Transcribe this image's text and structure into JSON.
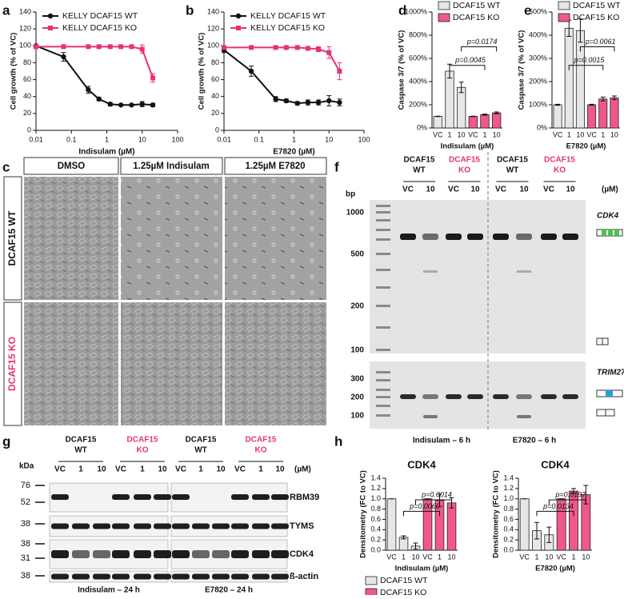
{
  "panel_labels": [
    "a",
    "b",
    "c",
    "d",
    "e",
    "f",
    "g",
    "h"
  ],
  "chart_data": [
    {
      "type": "line",
      "xlabel": "Indisulam (µM)",
      "ylabel": "Cell growth (% of VC)",
      "log_x": true,
      "x": [
        0.01,
        0.06,
        0.3,
        0.6,
        1.25,
        2.5,
        5,
        10,
        20
      ],
      "xlim": [
        0.01,
        100
      ],
      "xticks": [
        0.01,
        0.1,
        1,
        10,
        100
      ],
      "ylim": [
        0,
        140
      ],
      "yticks": [
        0,
        20,
        40,
        60,
        80,
        100,
        120,
        140
      ],
      "legend": "upper-left",
      "series": [
        {
          "name": "KELLY DCAF15 WT",
          "color": "#111111",
          "marker": "circle",
          "values": [
            100,
            87,
            48,
            37,
            31,
            30,
            30,
            31,
            30
          ],
          "errors": [
            1,
            5,
            4,
            2,
            2,
            1,
            1,
            3,
            2
          ]
        },
        {
          "name": "KELLY DCAF15 KO",
          "color": "#e8307a",
          "marker": "square",
          "values": [
            99,
            99,
            99,
            99,
            99,
            99,
            99,
            96,
            62
          ],
          "errors": [
            1,
            1,
            1,
            1,
            1,
            1,
            2,
            5,
            5
          ]
        }
      ]
    },
    {
      "type": "line",
      "xlabel": "E7820 (µM)",
      "ylabel": "Cell growth (% of VC)",
      "log_x": true,
      "x": [
        0.01,
        0.06,
        0.3,
        0.6,
        1.25,
        2.5,
        5,
        10,
        20
      ],
      "xlim": [
        0.01,
        100
      ],
      "xticks": [
        0.01,
        0.1,
        1,
        10,
        100
      ],
      "ylim": [
        0,
        140
      ],
      "yticks": [
        0,
        20,
        40,
        60,
        80,
        100,
        120,
        140
      ],
      "legend": "upper-left",
      "series": [
        {
          "name": "KELLY DCAF15 WT",
          "color": "#111111",
          "marker": "circle",
          "values": [
            95,
            70,
            37,
            35,
            32,
            33,
            33,
            35,
            33
          ],
          "errors": [
            3,
            6,
            3,
            2,
            2,
            3,
            3,
            6,
            4
          ]
        },
        {
          "name": "KELLY DCAF15 KO",
          "color": "#e8307a",
          "marker": "square",
          "values": [
            98,
            98,
            98,
            98,
            98,
            97,
            96,
            92,
            70
          ],
          "errors": [
            1,
            1,
            1,
            1,
            1,
            2,
            3,
            7,
            10
          ]
        }
      ]
    },
    {
      "type": "bar",
      "xlabel": "Indisulam (µM)",
      "ylabel": "Caspase 3/7 (% of VC)",
      "categories": [
        "VC",
        "1",
        "10",
        "VC",
        "1",
        "10"
      ],
      "ylim": [
        0,
        1000
      ],
      "yticks": [
        {
          "value": 0,
          "label": "0%"
        },
        {
          "value": 200,
          "label": "200%"
        },
        {
          "value": 400,
          "label": "400%"
        },
        {
          "value": 600,
          "label": "600%"
        },
        {
          "value": 800,
          "label": "800%"
        },
        {
          "value": 1000,
          "label": "1000%"
        }
      ],
      "legend": "top",
      "series": [
        {
          "name": "DCAF15 WT",
          "color": "#e6e6e6",
          "values": [
            100,
            490,
            350,
            null,
            null,
            null
          ],
          "errors": [
            2,
            60,
            45,
            null,
            null,
            null
          ]
        },
        {
          "name": "DCAF15 KO",
          "color": "#f0588c",
          "values": [
            null,
            null,
            null,
            100,
            115,
            130
          ],
          "errors": [
            null,
            null,
            null,
            2,
            5,
            8
          ]
        }
      ],
      "annotations": [
        "p=0.0045",
        "p=0.0174"
      ]
    },
    {
      "type": "bar",
      "xlabel": "E7820 (µM)",
      "ylabel": "Caspase 3/7 (% of VC)",
      "categories": [
        "VC",
        "1",
        "10",
        "VC",
        "1",
        "10"
      ],
      "ylim": [
        0,
        500
      ],
      "yticks": [
        {
          "value": 0,
          "label": "0%"
        },
        {
          "value": 100,
          "label": "100%"
        },
        {
          "value": 200,
          "label": "200%"
        },
        {
          "value": 300,
          "label": "300%"
        },
        {
          "value": 400,
          "label": "400%"
        },
        {
          "value": 500,
          "label": "500%"
        }
      ],
      "legend": "top",
      "series": [
        {
          "name": "DCAF15 WT",
          "color": "#e6e6e6",
          "values": [
            100,
            430,
            420,
            null,
            null,
            null
          ],
          "errors": [
            2,
            35,
            50,
            null,
            null,
            null
          ]
        },
        {
          "name": "DCAF15 KO",
          "color": "#f0588c",
          "values": [
            null,
            null,
            null,
            100,
            125,
            130
          ],
          "errors": [
            null,
            null,
            null,
            2,
            8,
            8
          ]
        }
      ],
      "annotations": [
        "p=0.0015",
        "p=0.0061"
      ]
    },
    {
      "type": "bar",
      "title": "CDK4",
      "xlabel": "Indisulam (µM)",
      "ylabel": "Densitometry (FC to VC)",
      "categories": [
        "VC",
        "1",
        "10",
        "VC",
        "1",
        "10"
      ],
      "ylim": [
        0,
        1.4
      ],
      "yticks": [
        {
          "value": 0,
          "label": "0.0"
        },
        {
          "value": 0.2,
          "label": "0.2"
        },
        {
          "value": 0.4,
          "label": "0.4"
        },
        {
          "value": 0.6,
          "label": "0.6"
        },
        {
          "value": 0.8,
          "label": "0.8"
        },
        {
          "value": 1,
          "label": "1.0"
        },
        {
          "value": 1.2,
          "label": "1.2"
        },
        {
          "value": 1.4,
          "label": "1.4"
        }
      ],
      "legend": "bottom",
      "series": [
        {
          "name": "DCAF15 WT",
          "color": "#e6e6e6",
          "values": [
            1,
            0.25,
            0.08,
            null,
            null,
            null
          ],
          "errors": [
            0,
            0.03,
            0.06,
            null,
            null,
            null
          ]
        },
        {
          "name": "DCAF15 KO",
          "color": "#f0588c",
          "values": [
            null,
            null,
            null,
            1,
            0.97,
            0.92
          ],
          "errors": [
            null,
            null,
            null,
            0,
            0.12,
            0.1
          ]
        }
      ],
      "annotations": [
        "p=0.0060",
        "p=0.0014"
      ]
    },
    {
      "type": "bar",
      "title": "CDK4",
      "xlabel": "E7820 (µM)",
      "ylabel": "Densitometry (FC to VC)",
      "categories": [
        "VC",
        "1",
        "10",
        "VC",
        "1",
        "10"
      ],
      "ylim": [
        0,
        1.4
      ],
      "yticks": [
        {
          "value": 0,
          "label": "0.0"
        },
        {
          "value": 0.2,
          "label": "0.2"
        },
        {
          "value": 0.4,
          "label": "0.4"
        },
        {
          "value": 0.6,
          "label": "0.6"
        },
        {
          "value": 0.8,
          "label": "0.8"
        },
        {
          "value": 1,
          "label": "1.0"
        },
        {
          "value": 1.2,
          "label": "1.2"
        },
        {
          "value": 1.4,
          "label": "1.4"
        }
      ],
      "series": [
        {
          "color": "#e6e6e6",
          "values": [
            1,
            0.38,
            0.3,
            null,
            null,
            null
          ],
          "errors": [
            0,
            0.16,
            0.15,
            null,
            null,
            null
          ]
        },
        {
          "color": "#f0588c",
          "values": [
            null,
            null,
            null,
            1,
            1.15,
            1.08
          ],
          "errors": [
            null,
            null,
            null,
            0,
            0.05,
            0.18
          ]
        }
      ],
      "annotations": [
        "p=0.0134",
        "p=0.0197"
      ]
    }
  ],
  "panel_c": {
    "columns": [
      "DMSO",
      "1.25µM Indisulam",
      "1.25µM E7820"
    ],
    "rows": [
      "DCAF15 WT",
      "DCAF15 KO"
    ]
  },
  "panel_f": {
    "unit": "bp",
    "ladder_top": [
      "1000",
      "500",
      "200",
      "100"
    ],
    "ladder_bottom": [
      "300",
      "200",
      "100"
    ],
    "groups": [
      [
        "DCAF15",
        "WT"
      ],
      [
        "DCAF15",
        "KO"
      ],
      [
        "DCAF15",
        "WT"
      ],
      [
        "DCAF15",
        "KO"
      ]
    ],
    "lanes": [
      "VC",
      "10",
      "VC",
      "10",
      "VC",
      "10",
      "VC",
      "10"
    ],
    "dose_unit": "(µM)",
    "genes": [
      "CDK4",
      "TRIM27"
    ],
    "treatments": [
      "Indisulam – 6 h",
      "E7820 – 6 h"
    ]
  },
  "panel_g": {
    "unit": "kDa",
    "markers": [
      "76",
      "52",
      "38",
      "38",
      "31",
      "38"
    ],
    "groups": [
      [
        "DCAF15",
        "WT"
      ],
      [
        "DCAF15",
        "KO"
      ],
      [
        "DCAF15",
        "WT"
      ],
      [
        "DCAF15",
        "KO"
      ]
    ],
    "lanes": [
      "VC",
      "1",
      "10",
      "VC",
      "1",
      "10",
      "VC",
      "1",
      "10",
      "VC",
      "1",
      "10"
    ],
    "dose_unit": "(µM)",
    "proteins": [
      "RBM39",
      "TYMS",
      "CDK4",
      "ß-actin"
    ],
    "treatments": [
      "Indisulam – 24 h",
      "E7820 – 24 h"
    ]
  }
}
